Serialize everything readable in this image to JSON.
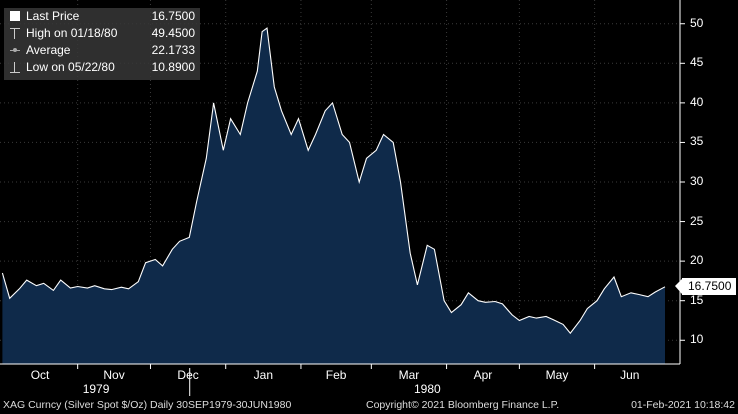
{
  "legend": {
    "last_label": "Last Price",
    "last_value": "16.7500",
    "high_label": "High on 01/18/80",
    "high_value": "49.4500",
    "avg_label": "Average",
    "avg_value": "22.1733",
    "low_label": "Low on 05/22/80",
    "low_value": "10.8900"
  },
  "last_price_tag": "16.7500",
  "footer": {
    "left": "XAG Curncy (Silver Spot  $/Oz)  Daily 30SEP1979-30JUN1980",
    "center": "Copyright© 2021 Bloomberg Finance L.P.",
    "right": "01-Feb-2021 10:18:42"
  },
  "colors": {
    "background": "#000000",
    "area_fill": "#0f2a4a",
    "line": "#ffffff",
    "grid": "#3a3a3a"
  },
  "chart_data": {
    "type": "area",
    "title": "",
    "xlabel": "",
    "ylabel": "",
    "ylim": [
      7,
      53
    ],
    "yticks": [
      "50",
      "45",
      "40",
      "35",
      "30",
      "25",
      "20",
      "15",
      "10"
    ],
    "month_labels": [
      "Oct",
      "Nov",
      "Dec",
      "Jan",
      "Feb",
      "Mar",
      "Apr",
      "May",
      "Jun"
    ],
    "year_labels": [
      "1979",
      "1980"
    ],
    "x": [
      "1979-10-01",
      "1979-10-04",
      "1979-10-08",
      "1979-10-11",
      "1979-10-15",
      "1979-10-18",
      "1979-10-22",
      "1979-10-25",
      "1979-10-29",
      "1979-11-01",
      "1979-11-05",
      "1979-11-08",
      "1979-11-12",
      "1979-11-15",
      "1979-11-19",
      "1979-11-22",
      "1979-11-26",
      "1979-11-29",
      "1979-12-03",
      "1979-12-06",
      "1979-12-10",
      "1979-12-13",
      "1979-12-17",
      "1979-12-20",
      "1979-12-24",
      "1979-12-27",
      "1979-12-31",
      "1980-01-03",
      "1980-01-07",
      "1980-01-10",
      "1980-01-14",
      "1980-01-16",
      "1980-01-18",
      "1980-01-21",
      "1980-01-24",
      "1980-01-28",
      "1980-01-31",
      "1980-02-04",
      "1980-02-07",
      "1980-02-11",
      "1980-02-14",
      "1980-02-18",
      "1980-02-21",
      "1980-02-25",
      "1980-02-28",
      "1980-03-03",
      "1980-03-06",
      "1980-03-10",
      "1980-03-13",
      "1980-03-17",
      "1980-03-20",
      "1980-03-24",
      "1980-03-27",
      "1980-03-31",
      "1980-04-03",
      "1980-04-07",
      "1980-04-10",
      "1980-04-14",
      "1980-04-17",
      "1980-04-21",
      "1980-04-24",
      "1980-04-28",
      "1980-05-01",
      "1980-05-05",
      "1980-05-08",
      "1980-05-12",
      "1980-05-15",
      "1980-05-19",
      "1980-05-22",
      "1980-05-26",
      "1980-05-29",
      "1980-06-02",
      "1980-06-05",
      "1980-06-09",
      "1980-06-12",
      "1980-06-16",
      "1980-06-19",
      "1980-06-23",
      "1980-06-26",
      "1980-06-30"
    ],
    "series": [
      {
        "values": [
          18.5,
          15.3,
          16.5,
          17.6,
          16.9,
          17.2,
          16.3,
          17.6,
          16.6,
          16.8,
          16.6,
          16.9,
          16.5,
          16.4,
          16.7,
          16.5,
          17.4,
          19.8,
          20.2,
          19.4,
          21.5,
          22.5,
          23.0,
          27.5,
          33.0,
          40.0,
          34.0,
          38.0,
          36.0,
          40.0,
          44.0,
          49.0,
          49.45,
          42.0,
          39.0,
          36.0,
          38.0,
          34.0,
          36.0,
          39.0,
          40.0,
          36.0,
          35.0,
          30.0,
          33.0,
          34.0,
          36.0,
          35.0,
          30.0,
          21.0,
          17.0,
          22.0,
          21.5,
          15.0,
          13.5,
          14.5,
          16.0,
          15.0,
          14.8,
          14.9,
          14.6,
          13.2,
          12.5,
          13.0,
          12.8,
          13.0,
          12.6,
          12.0,
          10.89,
          12.5,
          14.0,
          15.0,
          16.5,
          18.0,
          15.5,
          16.0,
          15.8,
          15.5,
          16.1,
          16.75
        ]
      }
    ]
  }
}
